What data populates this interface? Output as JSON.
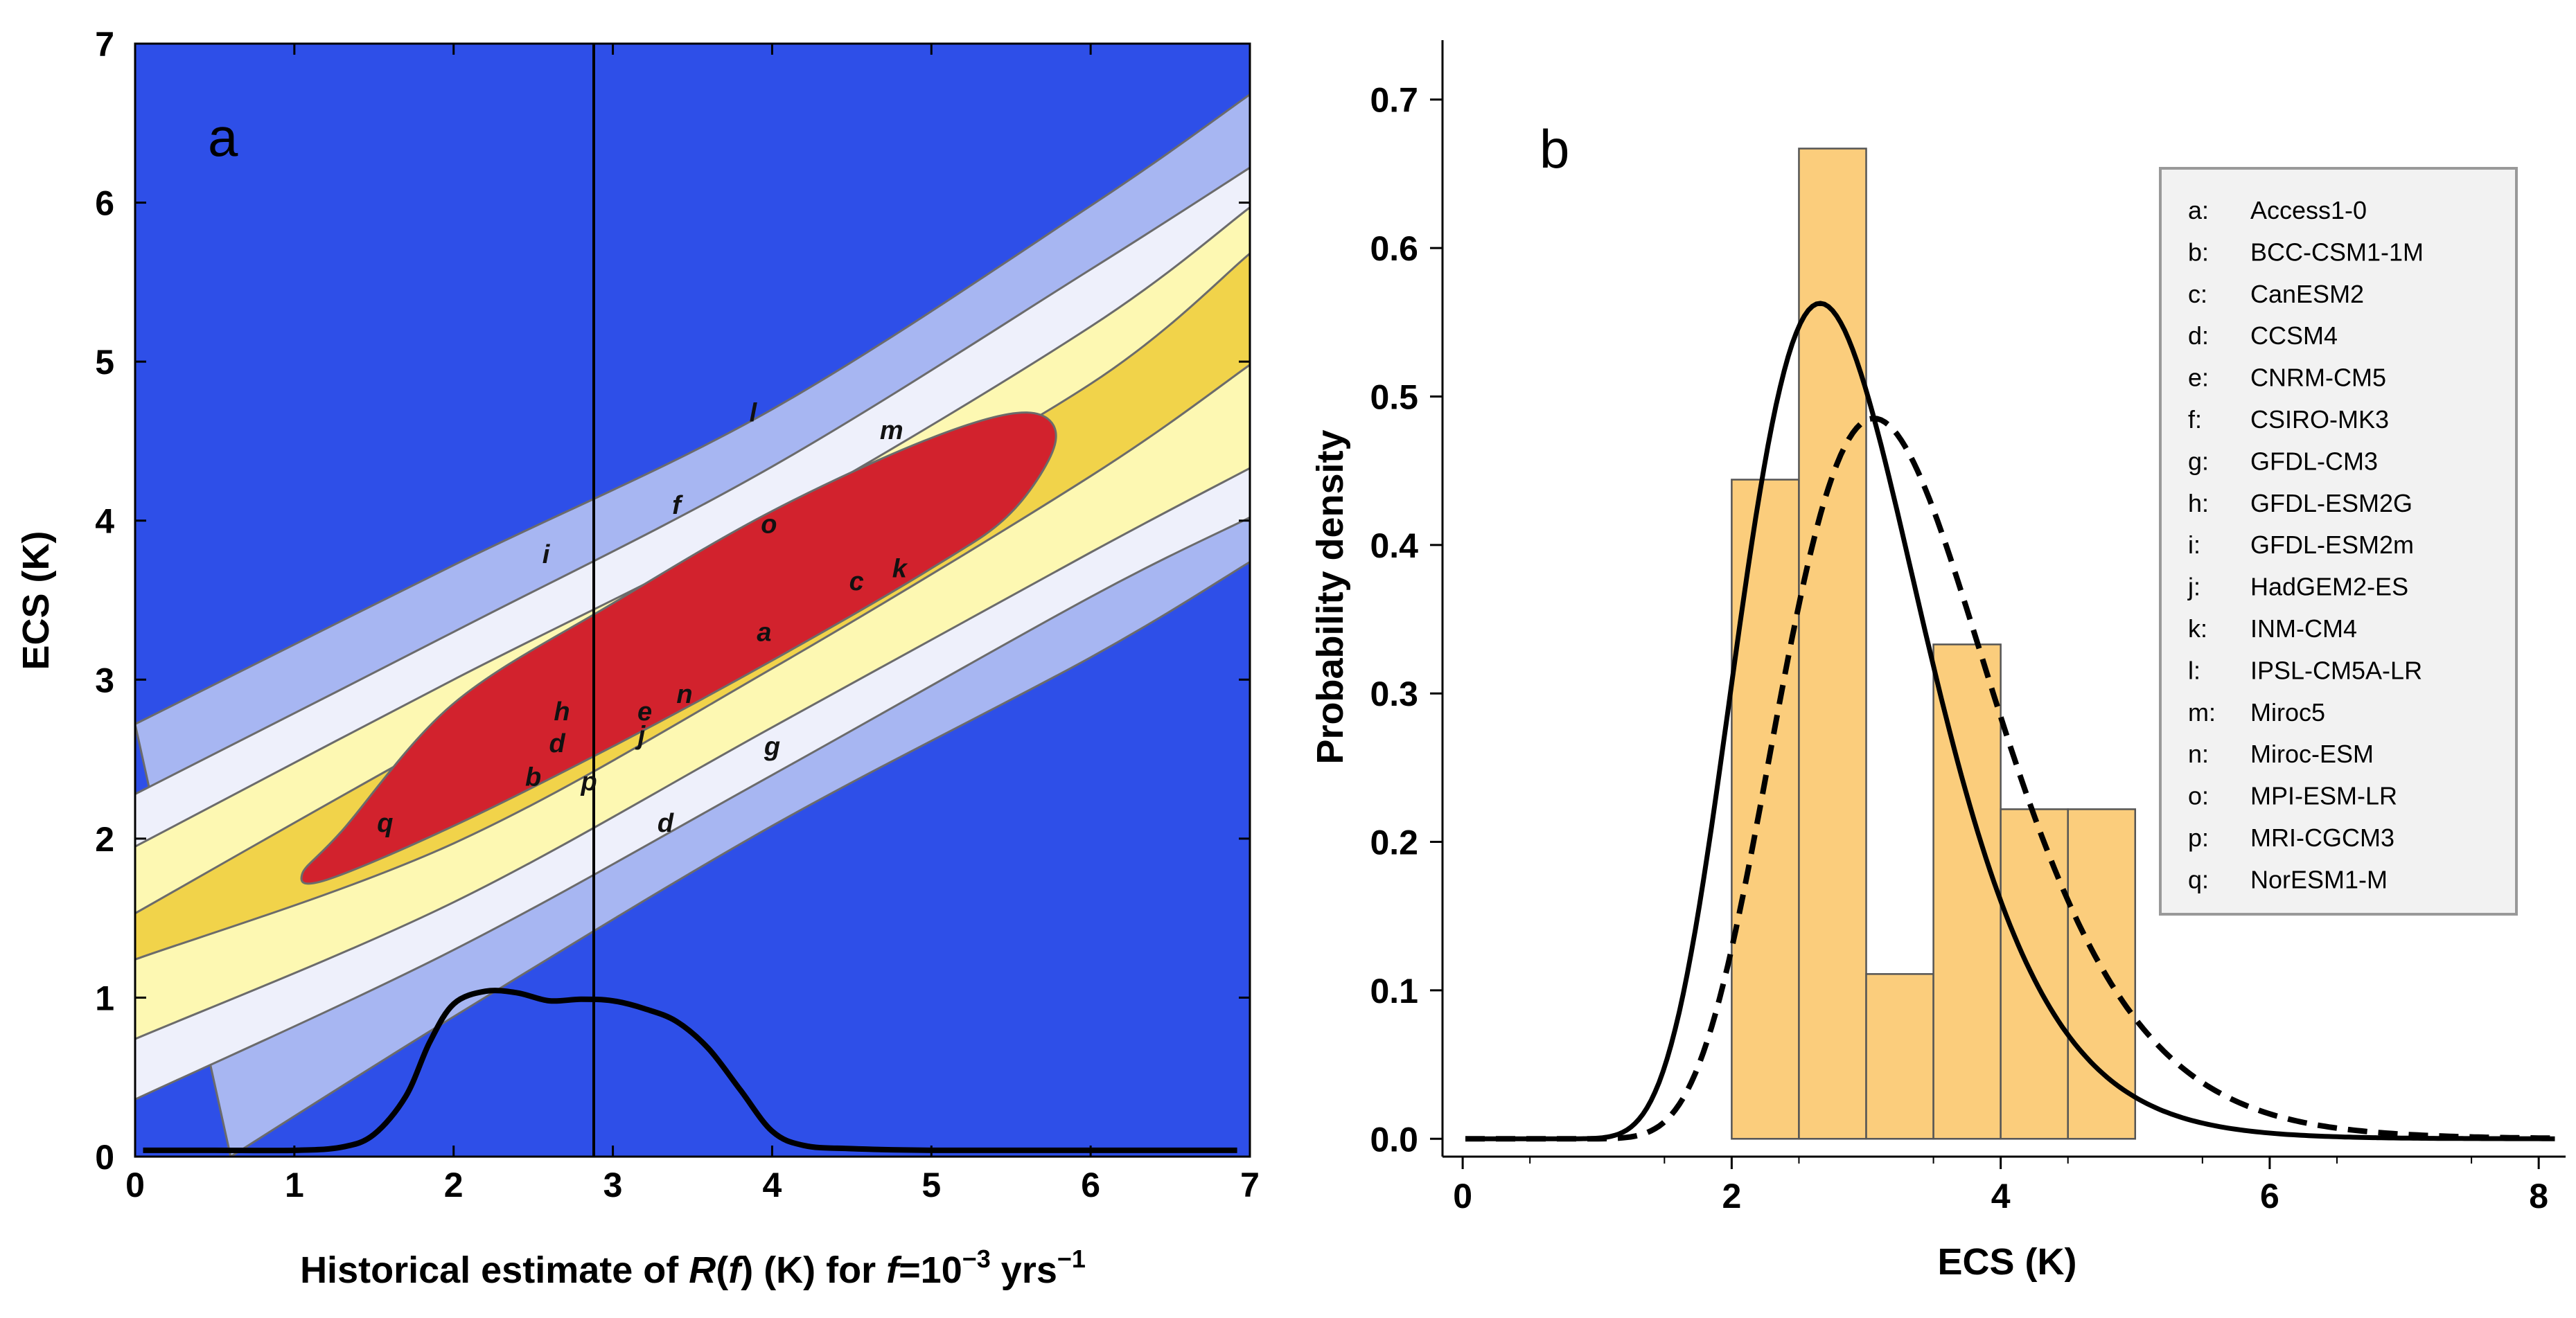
{
  "chart_data": [
    {
      "type": "heatmap",
      "panel_label": "a",
      "xlabel_parts": [
        "Historical estimate of ",
        "R",
        "(",
        "f",
        ") (K) for ",
        "f",
        "=10",
        "−3",
        " yrs",
        "−1"
      ],
      "ylabel": "ECS (K)",
      "xlim": [
        0,
        7
      ],
      "ylim": [
        0,
        7
      ],
      "xticks": [
        "0",
        "1",
        "2",
        "3",
        "4",
        "5",
        "6",
        "7"
      ],
      "yticks": [
        "0",
        "1",
        "2",
        "3",
        "4",
        "5",
        "6",
        "7"
      ],
      "colors": {
        "background": "#2e4fe8",
        "band_1": "#a7b6f2",
        "band_2": "#eef0fb",
        "band_3": "#fdf8b2",
        "band_4": "#f1d34a",
        "core": "#d2222d",
        "contour_line": "#6b6b6b"
      },
      "bands": [
        {
          "name": "band_1",
          "upper": [
            [
              0,
              2.72
            ],
            [
              2,
              3.72
            ],
            [
              4,
              4.7
            ],
            [
              6,
              5.98
            ],
            [
              7,
              6.68
            ]
          ],
          "lower": [
            [
              0.6,
              0
            ],
            [
              2,
              0.88
            ],
            [
              4,
              2.08
            ],
            [
              6,
              3.14
            ],
            [
              7,
              3.74
            ]
          ]
        },
        {
          "name": "band_2",
          "upper": [
            [
              0,
              2.28
            ],
            [
              2,
              3.3
            ],
            [
              4,
              4.34
            ],
            [
              6,
              5.58
            ],
            [
              7,
              6.22
            ]
          ],
          "lower": [
            [
              0,
              0.36
            ],
            [
              2,
              1.3
            ],
            [
              4,
              2.4
            ],
            [
              6,
              3.52
            ],
            [
              7,
              4.02
            ]
          ]
        },
        {
          "name": "band_3",
          "upper": [
            [
              0,
              1.95
            ],
            [
              2,
              3.0
            ],
            [
              4,
              4.02
            ],
            [
              6,
              5.22
            ],
            [
              7,
              5.97
            ]
          ],
          "lower": [
            [
              0,
              0.74
            ],
            [
              2,
              1.6
            ],
            [
              4,
              2.7
            ],
            [
              6,
              3.8
            ],
            [
              7,
              4.33
            ]
          ]
        },
        {
          "name": "band_4",
          "upper": [
            [
              0,
              1.53
            ],
            [
              2,
              2.66
            ],
            [
              4,
              3.72
            ],
            [
              6,
              4.86
            ],
            [
              7,
              5.68
            ]
          ],
          "lower": [
            [
              0,
              1.24
            ],
            [
              2,
              1.97
            ],
            [
              4,
              3.07
            ],
            [
              6,
              4.28
            ],
            [
              7,
              4.98
            ]
          ]
        }
      ],
      "core_region": [
        [
          1.05,
          1.78
        ],
        [
          1.2,
          1.74
        ],
        [
          2,
          2.08
        ],
        [
          3,
          2.58
        ],
        [
          4,
          3.12
        ],
        [
          5,
          3.7
        ],
        [
          5.5,
          4.05
        ],
        [
          5.78,
          4.5
        ],
        [
          5.6,
          4.68
        ],
        [
          5.0,
          4.52
        ],
        [
          4,
          4.06
        ],
        [
          3,
          3.48
        ],
        [
          2,
          2.85
        ],
        [
          1.3,
          2.05
        ]
      ],
      "vertical_line_x": 2.88,
      "density_curve": [
        [
          0.05,
          0.04
        ],
        [
          0.5,
          0.04
        ],
        [
          1.0,
          0.04
        ],
        [
          1.3,
          0.06
        ],
        [
          1.5,
          0.14
        ],
        [
          1.7,
          0.38
        ],
        [
          1.85,
          0.72
        ],
        [
          2.0,
          0.96
        ],
        [
          2.2,
          1.04
        ],
        [
          2.4,
          1.03
        ],
        [
          2.6,
          0.98
        ],
        [
          2.8,
          0.99
        ],
        [
          3.0,
          0.98
        ],
        [
          3.2,
          0.93
        ],
        [
          3.4,
          0.85
        ],
        [
          3.6,
          0.68
        ],
        [
          3.8,
          0.42
        ],
        [
          4.0,
          0.16
        ],
        [
          4.2,
          0.07
        ],
        [
          4.5,
          0.05
        ],
        [
          5.0,
          0.04
        ],
        [
          6.0,
          0.04
        ],
        [
          6.92,
          0.04
        ]
      ],
      "model_points": [
        {
          "label": "l",
          "x": 3.88,
          "y": 4.68
        },
        {
          "label": "m",
          "x": 4.75,
          "y": 4.57
        },
        {
          "label": "f",
          "x": 3.4,
          "y": 4.1
        },
        {
          "label": "o",
          "x": 3.98,
          "y": 3.98
        },
        {
          "label": "i",
          "x": 2.58,
          "y": 3.79
        },
        {
          "label": "c",
          "x": 4.53,
          "y": 3.62
        },
        {
          "label": "k",
          "x": 4.8,
          "y": 3.7
        },
        {
          "label": "a",
          "x": 3.95,
          "y": 3.3
        },
        {
          "label": "n",
          "x": 3.45,
          "y": 2.91
        },
        {
          "label": "h",
          "x": 2.68,
          "y": 2.8
        },
        {
          "label": "e",
          "x": 3.2,
          "y": 2.8
        },
        {
          "label": "j",
          "x": 3.18,
          "y": 2.65
        },
        {
          "label": "d",
          "x": 2.65,
          "y": 2.6
        },
        {
          "label": "g",
          "x": 4.0,
          "y": 2.58
        },
        {
          "label": "b",
          "x": 2.5,
          "y": 2.39
        },
        {
          "label": "p",
          "x": 2.85,
          "y": 2.36
        },
        {
          "label": "d",
          "x": 3.33,
          "y": 2.1
        },
        {
          "label": "q",
          "x": 1.57,
          "y": 2.1
        }
      ]
    },
    {
      "type": "bar",
      "panel_label": "b",
      "xlabel": "ECS (K)",
      "ylabel": "Probability density",
      "xlim": [
        -0.15,
        8.2
      ],
      "ylim": [
        -0.012,
        0.74
      ],
      "xticks": [
        "0",
        "2",
        "4",
        "6",
        "8"
      ],
      "yticks": [
        "0.0",
        "0.1",
        "0.2",
        "0.3",
        "0.4",
        "0.5",
        "0.6",
        "0.7"
      ],
      "colors": {
        "bar": "#fbcd7c",
        "bar_edge": "#555555",
        "curve": "#000000"
      },
      "bins": [
        {
          "x0": 2.0,
          "x1": 2.5,
          "value": 0.444
        },
        {
          "x0": 2.5,
          "x1": 3.0,
          "value": 0.667
        },
        {
          "x0": 3.0,
          "x1": 3.5,
          "value": 0.111
        },
        {
          "x0": 3.5,
          "x1": 4.0,
          "value": 0.333
        },
        {
          "x0": 4.0,
          "x1": 4.5,
          "value": 0.222
        },
        {
          "x0": 4.5,
          "x1": 5.0,
          "value": 0.222
        }
      ],
      "series": [
        {
          "name": "solid",
          "style": "solid",
          "mu": 1.044,
          "sigma": 0.258,
          "peak_at": 2.8
        },
        {
          "name": "dashed",
          "style": "dashed",
          "mu": 1.185,
          "sigma": 0.26,
          "peak_at": 3.2
        }
      ],
      "legend": [
        {
          "key": "a:",
          "model": "Access1-0"
        },
        {
          "key": "b:",
          "model": "BCC-CSM1-1M"
        },
        {
          "key": "c:",
          "model": "CanESM2"
        },
        {
          "key": "d:",
          "model": "CCSM4"
        },
        {
          "key": "e:",
          "model": "CNRM-CM5"
        },
        {
          "key": "f:",
          "model": "CSIRO-MK3"
        },
        {
          "key": "g:",
          "model": "GFDL-CM3"
        },
        {
          "key": "h:",
          "model": "GFDL-ESM2G"
        },
        {
          "key": "i:",
          "model": "GFDL-ESM2m"
        },
        {
          "key": "j:",
          "model": "HadGEM2-ES"
        },
        {
          "key": "k:",
          "model": "INM-CM4"
        },
        {
          "key": "l:",
          "model": "IPSL-CM5A-LR"
        },
        {
          "key": "m:",
          "model": "Miroc5"
        },
        {
          "key": "n:",
          "model": "Miroc-ESM"
        },
        {
          "key": "o:",
          "model": "MPI-ESM-LR"
        },
        {
          "key": "p:",
          "model": "MRI-CGCM3"
        },
        {
          "key": "q:",
          "model": "NorESM1-M"
        }
      ],
      "legend_position": "top-right"
    }
  ]
}
